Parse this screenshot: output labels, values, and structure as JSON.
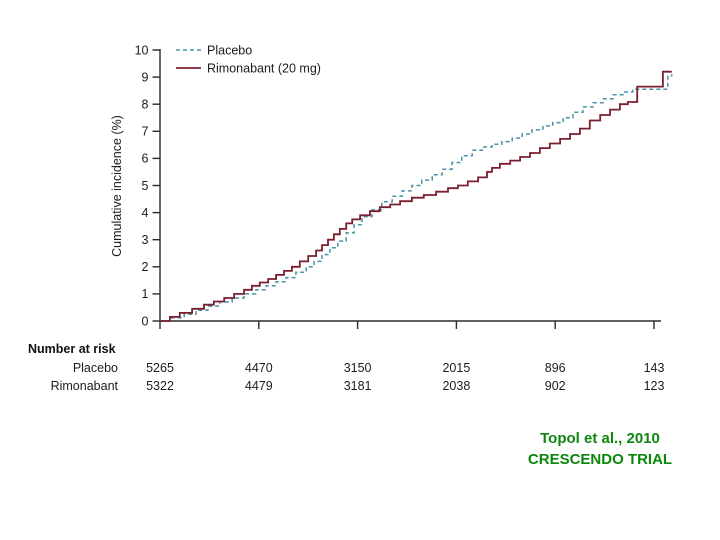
{
  "slide": {
    "background": "#ffffff",
    "citation_line1": "Topol et al., 2010",
    "citation_line2": "CRESCENDO TRIAL",
    "citation_color": "#0c860c"
  },
  "chart_data": {
    "type": "line",
    "subtype": "kaplan-meier-step",
    "title": "",
    "xlabel": "",
    "ylabel": "Cumulative incidence (%)",
    "ylim": [
      0,
      10
    ],
    "yticks": [
      0,
      1,
      2,
      3,
      4,
      5,
      6,
      7,
      8,
      9,
      10
    ],
    "x_axis": {
      "tick_count": 6,
      "tick_labels_visible": false
    },
    "grid": false,
    "legend_position": "top-left-inside",
    "axis_color": "#2b2b2b",
    "text_color": "#1c1c1c",
    "series": [
      {
        "name": "Placebo",
        "style": "dashed",
        "color": "#4a92a8",
        "points": [
          [
            0,
            0
          ],
          [
            0.024,
            0.12
          ],
          [
            0.049,
            0.25
          ],
          [
            0.073,
            0.4
          ],
          [
            0.097,
            0.55
          ],
          [
            0.121,
            0.7
          ],
          [
            0.146,
            0.85
          ],
          [
            0.17,
            1
          ],
          [
            0.194,
            1.15
          ],
          [
            0.215,
            1.3
          ],
          [
            0.235,
            1.45
          ],
          [
            0.255,
            1.6
          ],
          [
            0.275,
            1.8
          ],
          [
            0.296,
            2
          ],
          [
            0.312,
            2.2
          ],
          [
            0.328,
            2.45
          ],
          [
            0.344,
            2.7
          ],
          [
            0.36,
            2.95
          ],
          [
            0.377,
            3.25
          ],
          [
            0.393,
            3.55
          ],
          [
            0.409,
            3.85
          ],
          [
            0.429,
            4.1
          ],
          [
            0.449,
            4.4
          ],
          [
            0.47,
            4.6
          ],
          [
            0.49,
            4.8
          ],
          [
            0.51,
            5
          ],
          [
            0.53,
            5.2
          ],
          [
            0.551,
            5.4
          ],
          [
            0.571,
            5.6
          ],
          [
            0.591,
            5.85
          ],
          [
            0.611,
            6.1
          ],
          [
            0.632,
            6.3
          ],
          [
            0.652,
            6.42
          ],
          [
            0.672,
            6.52
          ],
          [
            0.692,
            6.62
          ],
          [
            0.713,
            6.75
          ],
          [
            0.733,
            6.9
          ],
          [
            0.753,
            7.05
          ],
          [
            0.775,
            7.2
          ],
          [
            0.795,
            7.32
          ],
          [
            0.816,
            7.5
          ],
          [
            0.836,
            7.7
          ],
          [
            0.856,
            7.9
          ],
          [
            0.877,
            8.05
          ],
          [
            0.897,
            8.2
          ],
          [
            0.917,
            8.35
          ],
          [
            0.937,
            8.45
          ],
          [
            0.957,
            8.55
          ],
          [
            1.028,
            8.55
          ],
          [
            1.028,
            9.05
          ],
          [
            1.036,
            9.1
          ]
        ]
      },
      {
        "name": "Rimonabant (20 mg)",
        "style": "solid",
        "color": "#7a1f2d",
        "points": [
          [
            0,
            0
          ],
          [
            0.02,
            0.15
          ],
          [
            0.04,
            0.3
          ],
          [
            0.065,
            0.45
          ],
          [
            0.089,
            0.6
          ],
          [
            0.109,
            0.72
          ],
          [
            0.13,
            0.85
          ],
          [
            0.15,
            1
          ],
          [
            0.17,
            1.15
          ],
          [
            0.186,
            1.3
          ],
          [
            0.202,
            1.42
          ],
          [
            0.219,
            1.55
          ],
          [
            0.235,
            1.7
          ],
          [
            0.251,
            1.85
          ],
          [
            0.267,
            2
          ],
          [
            0.283,
            2.2
          ],
          [
            0.3,
            2.4
          ],
          [
            0.316,
            2.6
          ],
          [
            0.328,
            2.8
          ],
          [
            0.34,
            3
          ],
          [
            0.352,
            3.2
          ],
          [
            0.364,
            3.4
          ],
          [
            0.377,
            3.6
          ],
          [
            0.389,
            3.75
          ],
          [
            0.405,
            3.9
          ],
          [
            0.425,
            4.05
          ],
          [
            0.445,
            4.2
          ],
          [
            0.466,
            4.3
          ],
          [
            0.486,
            4.42
          ],
          [
            0.51,
            4.55
          ],
          [
            0.534,
            4.65
          ],
          [
            0.559,
            4.77
          ],
          [
            0.583,
            4.9
          ],
          [
            0.603,
            5
          ],
          [
            0.623,
            5.15
          ],
          [
            0.644,
            5.3
          ],
          [
            0.662,
            5.5
          ],
          [
            0.672,
            5.65
          ],
          [
            0.688,
            5.8
          ],
          [
            0.709,
            5.92
          ],
          [
            0.729,
            6.05
          ],
          [
            0.749,
            6.2
          ],
          [
            0.769,
            6.38
          ],
          [
            0.789,
            6.55
          ],
          [
            0.81,
            6.72
          ],
          [
            0.83,
            6.9
          ],
          [
            0.85,
            7.1
          ],
          [
            0.87,
            7.4
          ],
          [
            0.891,
            7.6
          ],
          [
            0.911,
            7.8
          ],
          [
            0.931,
            8
          ],
          [
            0.947,
            8.08
          ],
          [
            0.966,
            8.65
          ],
          [
            1.018,
            9.2
          ],
          [
            1.036,
            9.2
          ]
        ]
      }
    ],
    "number_at_risk": {
      "header": "Number at risk",
      "rows": [
        {
          "label": "Placebo",
          "values": [
            "5265",
            "4470",
            "3150",
            "2015",
            "896",
            "143"
          ]
        },
        {
          "label": "Rimonabant",
          "values": [
            "5322",
            "4479",
            "3181",
            "2038",
            "902",
            "123"
          ]
        }
      ]
    }
  }
}
